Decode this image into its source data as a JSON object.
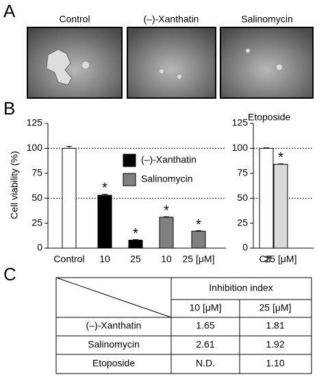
{
  "panel_labels": [
    "A",
    "B",
    "C"
  ],
  "images": [
    {
      "label": "Control"
    },
    {
      "label": "(–)-Xanthatin"
    },
    {
      "label": "Salinomycin"
    }
  ],
  "chart_data": [
    {
      "type": "bar",
      "ylabel": "Cell viability (%)",
      "categories": [
        "Control",
        "10",
        "25",
        "10",
        "25 [μM]"
      ],
      "values": [
        100,
        53,
        8,
        31,
        17
      ],
      "errors": [
        2,
        1,
        0.5,
        0.5,
        0.5
      ],
      "colors": [
        "#ffffff",
        "#000000",
        "#000000",
        "#808080",
        "#808080"
      ],
      "significance": [
        {
          "index": 1,
          "label": "*"
        },
        {
          "index": 2,
          "label": "*"
        },
        {
          "index": 3,
          "label": "*"
        },
        {
          "index": 4,
          "label": "*"
        }
      ],
      "legend": [
        {
          "label": "(–)-Xanthatin",
          "color": "#000000"
        },
        {
          "label": "Salinomycin",
          "color": "#808080"
        }
      ],
      "ylim": [
        0,
        125
      ],
      "yticks": [
        0,
        25,
        50,
        75,
        100,
        125
      ],
      "hlines": [
        50,
        100
      ]
    },
    {
      "type": "bar",
      "title": "Etoposide",
      "categories": [
        "Ctl.",
        "25 [μM]"
      ],
      "values": [
        100,
        84
      ],
      "errors": [
        0.5,
        0.5
      ],
      "colors": [
        "#ffffff",
        "#d9d9d9"
      ],
      "significance": [
        {
          "index": 1,
          "label": "*"
        }
      ],
      "ylim": [
        0,
        125
      ],
      "yticks": [
        0,
        25,
        50,
        75,
        100,
        125
      ],
      "hlines": [
        50,
        100
      ]
    }
  ],
  "table": {
    "header": "Inhibition index",
    "subheaders": [
      "10 [μM]",
      "25 [μM]"
    ],
    "rows": [
      [
        "(–)-Xanthatin",
        "1.65",
        "1.81"
      ],
      [
        "Salinomycin",
        "2.61",
        "1.92"
      ],
      [
        "Etoposide",
        "N.D.",
        "1.10"
      ]
    ]
  }
}
